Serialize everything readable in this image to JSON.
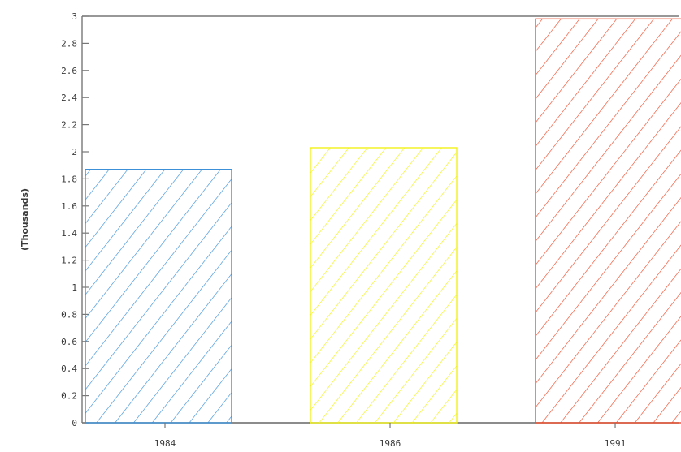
{
  "chart_data": {
    "type": "bar",
    "title": "",
    "xlabel": "",
    "ylabel": "(Thousands)",
    "categories": [
      "1984",
      "1986",
      "1991"
    ],
    "values": [
      1.87,
      2.03,
      2.98
    ],
    "ylim": [
      0,
      3
    ],
    "yticks": [
      "0",
      "0.2",
      "0.4",
      "0.6",
      "0.8",
      "1",
      "1.2",
      "1.4",
      "1.6",
      "1.8",
      "2",
      "2.2",
      "2.4",
      "2.6",
      "2.8",
      "3"
    ],
    "bar_colors": [
      "#3a8fd8",
      "#f2f21a",
      "#ee4a2a"
    ],
    "fill_pattern": "diagonal-hatch",
    "grid": false,
    "legend": "none"
  }
}
